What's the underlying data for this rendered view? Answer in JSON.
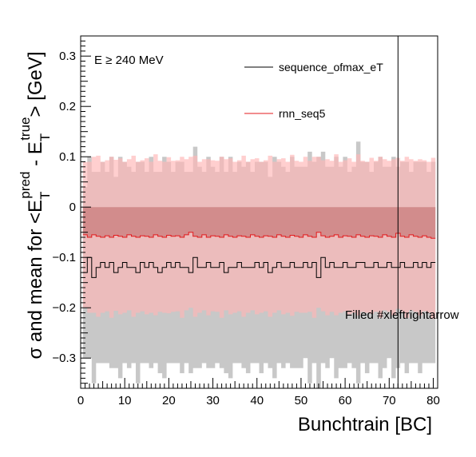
{
  "chart_data": {
    "type": "line",
    "title": "",
    "xlabel": "Bunchtrain [BC]",
    "ylabel": {
      "prefix": "σ and mean for <E",
      "sub1": "T",
      "sup1": "pred",
      "mid": " - E",
      "sub2": "T",
      "sup2": "true",
      "suffix": "> [GeV]"
    },
    "annotations": {
      "energy_cut": "E ≥ 240 MeV",
      "bunchtrain_end": "Filled #xleftrightarrow"
    },
    "xlim": [
      0,
      81
    ],
    "ylim": [
      -0.36,
      0.34
    ],
    "xticks": [
      0,
      10,
      20,
      30,
      40,
      50,
      60,
      70,
      80
    ],
    "yticks": [
      -0.3,
      -0.2,
      -0.1,
      0,
      0.1,
      0.2,
      0.3
    ],
    "ytick_labels": [
      "−0.3",
      "−0.2",
      "−0.1",
      "0",
      "0.1",
      "0.2",
      "0.3"
    ],
    "vertical_line_x": 72,
    "grid": false,
    "legend_position": "top-right",
    "colors": {
      "sequence_ofmax_eT": "#000000",
      "rnn_seq5": "#e31a1c",
      "gray_band": "#c8c8c8",
      "red_band": "#ffb6b6",
      "mean_fill": "#c87878"
    },
    "series": [
      {
        "name": "sequence_ofmax_eT",
        "x_start": 1,
        "values": [
          -0.13,
          -0.1,
          -0.14,
          -0.12,
          -0.11,
          -0.12,
          -0.11,
          -0.13,
          -0.12,
          -0.11,
          -0.12,
          -0.12,
          -0.13,
          -0.11,
          -0.12,
          -0.11,
          -0.12,
          -0.13,
          -0.12,
          -0.11,
          -0.12,
          -0.11,
          -0.12,
          -0.12,
          -0.13,
          -0.1,
          -0.12,
          -0.12,
          -0.11,
          -0.12,
          -0.12,
          -0.11,
          -0.13,
          -0.12,
          -0.12,
          -0.11,
          -0.12,
          -0.12,
          -0.12,
          -0.11,
          -0.12,
          -0.11,
          -0.13,
          -0.12,
          -0.11,
          -0.12,
          -0.12,
          -0.11,
          -0.12,
          -0.12,
          -0.11,
          -0.12,
          -0.11,
          -0.14,
          -0.1,
          -0.12,
          -0.11,
          -0.12,
          -0.12,
          -0.11,
          -0.12,
          -0.12,
          -0.11,
          -0.11,
          -0.12,
          -0.12,
          -0.11,
          -0.12,
          -0.12,
          -0.11,
          -0.12,
          -0.12,
          -0.11,
          -0.12,
          -0.12,
          -0.11,
          -0.12,
          -0.11,
          -0.12,
          -0.11
        ],
        "sigma": [
          0.17,
          0.2,
          0.21,
          0.19,
          0.2,
          0.19,
          0.21,
          0.19,
          0.22,
          0.2,
          0.2,
          0.19,
          0.22,
          0.2,
          0.19,
          0.21,
          0.19,
          0.2,
          0.22,
          0.2,
          0.19,
          0.2,
          0.21,
          0.19,
          0.2,
          0.22,
          0.2,
          0.19,
          0.21,
          0.2,
          0.19,
          0.21,
          0.2,
          0.22,
          0.19,
          0.2,
          0.2,
          0.21,
          0.19,
          0.2,
          0.21,
          0.2,
          0.19,
          0.22,
          0.2,
          0.2,
          0.19,
          0.21,
          0.2,
          0.2,
          0.19,
          0.23,
          0.2,
          0.24,
          0.21,
          0.2,
          0.19,
          0.22,
          0.2,
          0.21,
          0.19,
          0.2,
          0.24,
          0.2,
          0.21,
          0.19,
          0.2,
          0.22,
          0.2,
          0.19,
          0.22,
          0.2,
          0.2,
          0.21,
          0.19,
          0.2,
          0.21,
          0.2,
          0.19,
          0.2
        ]
      },
      {
        "name": "rnn_seq5",
        "x_start": 1,
        "values": [
          -0.055,
          -0.06,
          -0.055,
          -0.058,
          -0.06,
          -0.057,
          -0.06,
          -0.056,
          -0.058,
          -0.06,
          -0.055,
          -0.058,
          -0.06,
          -0.057,
          -0.058,
          -0.06,
          -0.055,
          -0.058,
          -0.06,
          -0.056,
          -0.058,
          -0.057,
          -0.06,
          -0.055,
          -0.05,
          -0.058,
          -0.06,
          -0.055,
          -0.06,
          -0.057,
          -0.058,
          -0.06,
          -0.055,
          -0.058,
          -0.06,
          -0.057,
          -0.058,
          -0.06,
          -0.055,
          -0.058,
          -0.06,
          -0.057,
          -0.058,
          -0.06,
          -0.055,
          -0.058,
          -0.06,
          -0.056,
          -0.058,
          -0.06,
          -0.055,
          -0.058,
          -0.06,
          -0.05,
          -0.057,
          -0.06,
          -0.058,
          -0.055,
          -0.06,
          -0.057,
          -0.058,
          -0.06,
          -0.055,
          -0.058,
          -0.06,
          -0.057,
          -0.058,
          -0.06,
          -0.055,
          -0.058,
          -0.06,
          -0.052,
          -0.058,
          -0.06,
          -0.055,
          -0.058,
          -0.06,
          -0.057,
          -0.06,
          -0.062
        ],
        "sigma": [
          0.145,
          0.15,
          0.155,
          0.16,
          0.15,
          0.15,
          0.16,
          0.15,
          0.155,
          0.15,
          0.15,
          0.16,
          0.15,
          0.15,
          0.155,
          0.15,
          0.16,
          0.15,
          0.15,
          0.155,
          0.15,
          0.15,
          0.16,
          0.15,
          0.15,
          0.16,
          0.15,
          0.15,
          0.155,
          0.15,
          0.15,
          0.16,
          0.15,
          0.155,
          0.15,
          0.15,
          0.16,
          0.15,
          0.15,
          0.155,
          0.15,
          0.15,
          0.16,
          0.15,
          0.15,
          0.155,
          0.15,
          0.16,
          0.15,
          0.15,
          0.155,
          0.15,
          0.16,
          0.15,
          0.15,
          0.155,
          0.15,
          0.16,
          0.15,
          0.15,
          0.155,
          0.15,
          0.16,
          0.15,
          0.15,
          0.155,
          0.15,
          0.16,
          0.15,
          0.15,
          0.155,
          0.15,
          0.15,
          0.16,
          0.15,
          0.15,
          0.155,
          0.15,
          0.15,
          0.16
        ]
      }
    ]
  }
}
